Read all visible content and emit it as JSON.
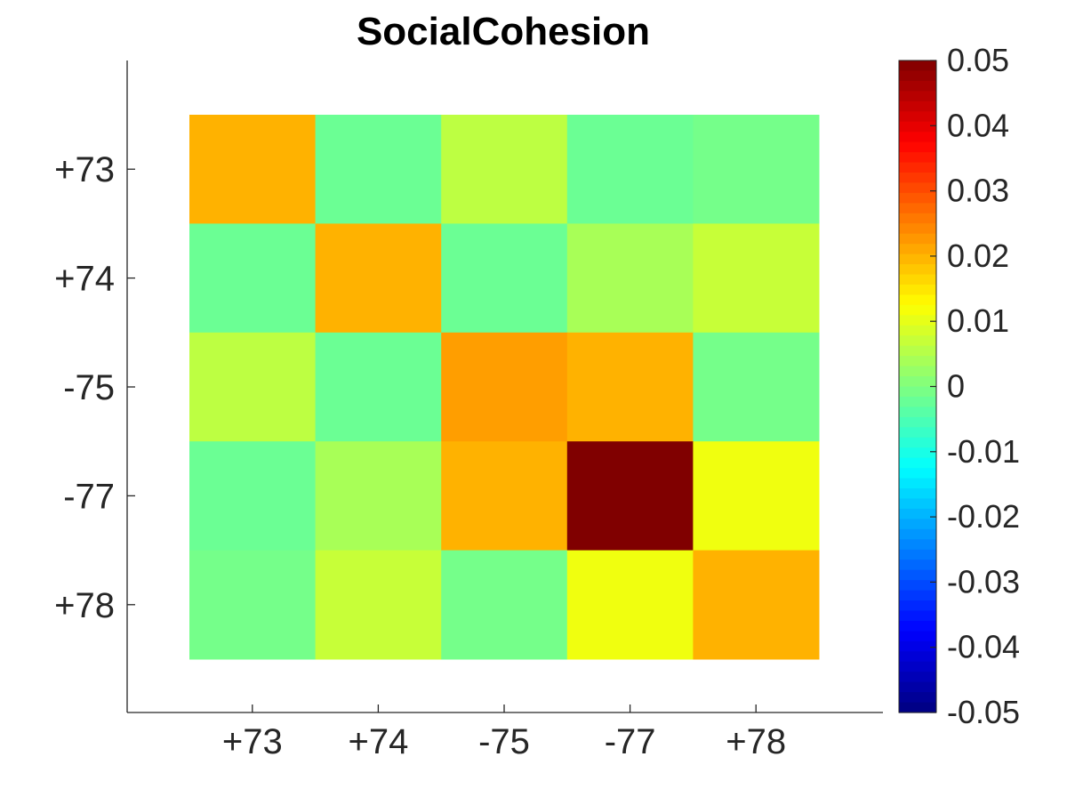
{
  "chart_data": {
    "type": "heatmap",
    "title": "SocialCohesion",
    "x_categories": [
      "+73",
      "+74",
      "-75",
      "-77",
      "+78"
    ],
    "y_categories": [
      "+73",
      "+74",
      "-75",
      "-77",
      "+78"
    ],
    "values": [
      [
        0.02,
        -0.002,
        0.006,
        -0.002,
        -0.001
      ],
      [
        -0.002,
        0.02,
        -0.002,
        0.004,
        0.007
      ],
      [
        0.006,
        -0.002,
        0.022,
        0.02,
        -0.001
      ],
      [
        -0.002,
        0.004,
        0.02,
        0.05,
        0.011
      ],
      [
        -0.001,
        0.007,
        -0.001,
        0.011,
        0.02
      ]
    ],
    "colorbar": {
      "colormap": "jet",
      "range": [
        -0.05,
        0.05
      ],
      "ticks": [
        "0.05",
        "0.04",
        "0.03",
        "0.02",
        "0.01",
        "0",
        "-0.01",
        "-0.02",
        "-0.03",
        "-0.04",
        "-0.05"
      ]
    },
    "xlabel": "",
    "ylabel": "",
    "grid": false
  }
}
